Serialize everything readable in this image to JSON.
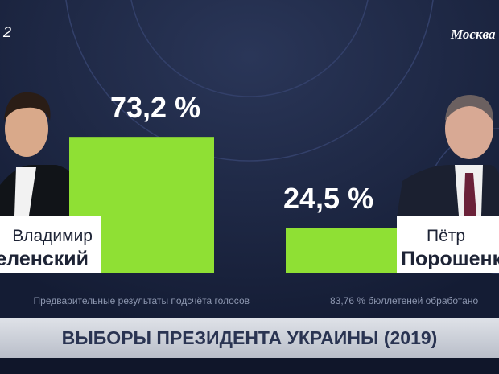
{
  "chart_data": {
    "type": "bar",
    "categories": [
      "Зеленский",
      "Порошенко"
    ],
    "first_names": [
      "Владимир",
      "Пётр"
    ],
    "values": [
      73.2,
      24.5
    ],
    "value_labels": [
      "73,2 %",
      "24,5 %"
    ],
    "color": "#8fe034"
  },
  "header": {
    "time": "2",
    "city": "Москва"
  },
  "notes": [
    "Предварительные результаты подсчёта голосов",
    "83,76 % бюллетеней обработано"
  ],
  "banner": "ВЫБОРЫ ПРЕЗИДЕНТА УКРАИНЫ (2019)"
}
